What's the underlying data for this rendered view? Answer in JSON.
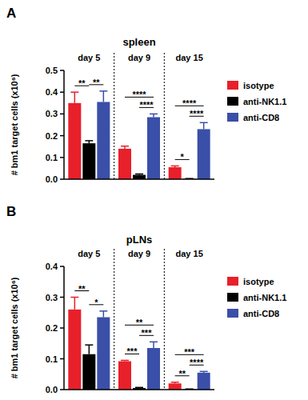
{
  "chart_data": [
    {
      "type": "bar",
      "panel": "A",
      "title": "spleen",
      "y_label": "# bm1 target cells (x10⁶)",
      "categories": [
        "day 5",
        "day 9",
        "day 15"
      ],
      "series": [
        {
          "name": "isotype",
          "color": "#e8202a",
          "values": [
            0.35,
            0.14,
            0.055
          ],
          "errors": [
            0.05,
            0.012,
            0.006
          ]
        },
        {
          "name": "anti-NK1.1",
          "color": "#000000",
          "values": [
            0.165,
            0.02,
            0.002
          ],
          "errors": [
            0.012,
            0.004,
            0.001
          ]
        },
        {
          "name": "anti-CD8",
          "color": "#3a4fa8",
          "values": [
            0.355,
            0.285,
            0.23
          ],
          "errors": [
            0.05,
            0.015,
            0.03
          ]
        }
      ],
      "ylim": [
        0,
        0.5
      ],
      "yticks": [
        {
          "value": 0,
          "label": "0.0"
        },
        0.1,
        0.2,
        0.3,
        0.4,
        0.5
      ],
      "legend": "right",
      "significance": [
        {
          "label": "**",
          "category": 0,
          "series": [
            0,
            1
          ]
        },
        {
          "label": "**",
          "category": 0,
          "series": [
            1,
            2
          ]
        },
        {
          "label": "****",
          "category": 1,
          "series": [
            1,
            2
          ]
        },
        {
          "label": "****",
          "category": 1,
          "series": [
            0,
            2
          ]
        },
        {
          "label": "*",
          "category": 2,
          "series": [
            0,
            1
          ]
        },
        {
          "label": "****",
          "category": 2,
          "series": [
            1,
            2
          ]
        },
        {
          "label": "****",
          "category": 2,
          "series": [
            0,
            2
          ]
        }
      ]
    },
    {
      "type": "bar",
      "panel": "B",
      "title": "pLNs",
      "y_label": "# bm1 target cells (x10⁶)",
      "categories": [
        "day 5",
        "day 9",
        "day 15"
      ],
      "series": [
        {
          "name": "isotype",
          "color": "#e8202a",
          "values": [
            0.26,
            0.092,
            0.02
          ],
          "errors": [
            0.04,
            0.003,
            0.004
          ]
        },
        {
          "name": "anti-NK1.1",
          "color": "#000000",
          "values": [
            0.115,
            0.005,
            0.001
          ],
          "errors": [
            0.03,
            0.002,
            0.001
          ]
        },
        {
          "name": "anti-CD8",
          "color": "#3a4fa8",
          "values": [
            0.235,
            0.135,
            0.055
          ],
          "errors": [
            0.02,
            0.02,
            0.004
          ]
        }
      ],
      "ylim": [
        0,
        0.4
      ],
      "yticks": [
        {
          "value": 0,
          "label": "0.0"
        },
        0.1,
        0.2,
        0.3,
        0.4
      ],
      "legend": "right",
      "significance": [
        {
          "label": "**",
          "category": 0,
          "series": [
            0,
            1
          ]
        },
        {
          "label": "*",
          "category": 0,
          "series": [
            1,
            2
          ]
        },
        {
          "label": "***",
          "category": 1,
          "series": [
            0,
            1
          ]
        },
        {
          "label": "***",
          "category": 1,
          "series": [
            1,
            2
          ]
        },
        {
          "label": "**",
          "category": 1,
          "series": [
            0,
            2
          ]
        },
        {
          "label": "**",
          "category": 2,
          "series": [
            0,
            1
          ]
        },
        {
          "label": "****",
          "category": 2,
          "series": [
            1,
            2
          ]
        },
        {
          "label": "***",
          "category": 2,
          "series": [
            0,
            2
          ]
        }
      ]
    }
  ]
}
